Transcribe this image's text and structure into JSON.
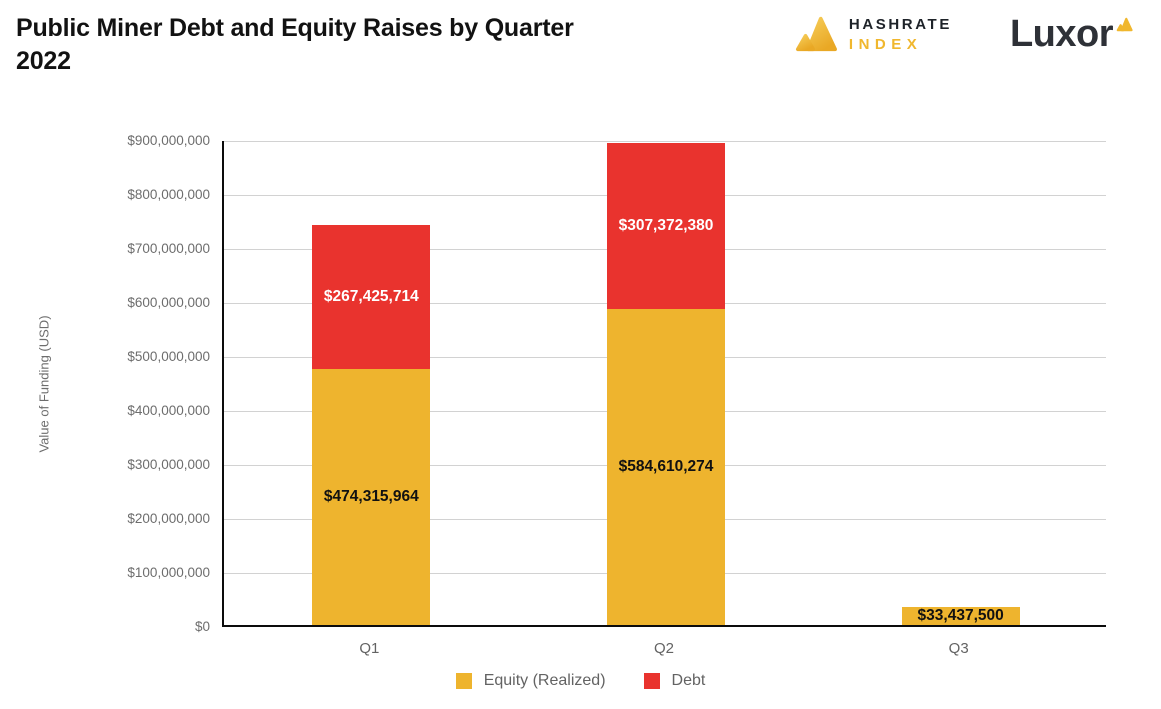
{
  "branding": {
    "hashrate_line1": "HASHRATE",
    "hashrate_line2": "INDEX",
    "luxor": "Luxor",
    "gold": "#f0b72e",
    "gold_light": "#f6cd59",
    "gold_deep": "#e9a825"
  },
  "chart_data": {
    "type": "bar",
    "stacked": true,
    "title": "Public Miner Debt and Equity Raises by Quarter 2022",
    "categories": [
      "Q1",
      "Q2",
      "Q3"
    ],
    "series": [
      {
        "name": "Equity (Realized)",
        "color": "#eeb42e",
        "label_color": "#111111",
        "values": [
          474315964,
          584610274,
          33437500
        ],
        "labels": [
          "$474,315,964",
          "$584,610,274",
          "$33,437,500"
        ]
      },
      {
        "name": "Debt",
        "color": "#e9332e",
        "label_color": "#ffffff",
        "values": [
          267425714,
          307372380,
          0
        ],
        "labels": [
          "$267,425,714",
          "$307,372,380",
          ""
        ]
      }
    ],
    "xlabel": "",
    "ylabel": "Value of Funding (USD)",
    "ylim": [
      0,
      900000000
    ],
    "y_ticks": [
      {
        "value": 0,
        "label": "$0"
      },
      {
        "value": 100000000,
        "label": "$100,000,000"
      },
      {
        "value": 200000000,
        "label": "$200,000,000"
      },
      {
        "value": 300000000,
        "label": "$300,000,000"
      },
      {
        "value": 400000000,
        "label": "$400,000,000"
      },
      {
        "value": 500000000,
        "label": "$500,000,000"
      },
      {
        "value": 600000000,
        "label": "$600,000,000"
      },
      {
        "value": 700000000,
        "label": "$700,000,000"
      },
      {
        "value": 800000000,
        "label": "$800,000,000"
      },
      {
        "value": 900000000,
        "label": "$900,000,000"
      }
    ],
    "grid": true,
    "legend_position": "bottom"
  }
}
